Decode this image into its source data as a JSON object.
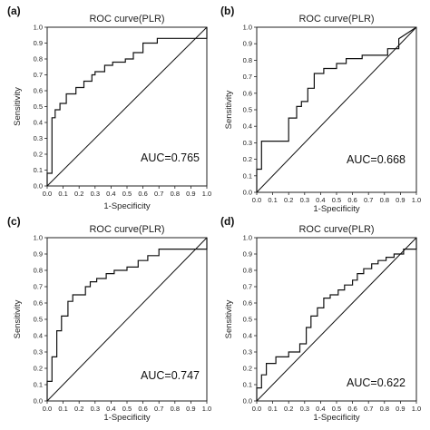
{
  "panels": [
    {
      "label": "(a)",
      "auc": "AUC=0.765",
      "chart_data": {
        "type": "line",
        "title": "ROC curve(PLR)",
        "xlabel": "1-Specificity",
        "ylabel": "Sensitivity",
        "xlim": [
          0,
          1
        ],
        "ylim": [
          0,
          1
        ],
        "x_ticks": [
          "0.0",
          "0.1",
          "0.2",
          "0.3",
          "0.4",
          "0.5",
          "0.6",
          "0.7",
          "0.8",
          "0.9",
          "1.0"
        ],
        "y_ticks": [
          "0.0",
          "0.1",
          "0.2",
          "0.3",
          "0.4",
          "0.5",
          "0.6",
          "0.7",
          "0.8",
          "0.9",
          "1.0"
        ],
        "grid": false,
        "series": [
          {
            "x": [
              0,
              0,
              0.03,
              0.03,
              0.05,
              0.05,
              0.08,
              0.08,
              0.12,
              0.12,
              0.18,
              0.18,
              0.23,
              0.23,
              0.28,
              0.28,
              0.3,
              0.3,
              0.36,
              0.36,
              0.41,
              0.41,
              0.49,
              0.49,
              0.54,
              0.54,
              0.6,
              0.6,
              0.69,
              0.69,
              1,
              1
            ],
            "y": [
              0,
              0.08,
              0.08,
              0.43,
              0.43,
              0.48,
              0.48,
              0.52,
              0.52,
              0.58,
              0.58,
              0.62,
              0.62,
              0.66,
              0.66,
              0.7,
              0.7,
              0.72,
              0.72,
              0.76,
              0.76,
              0.78,
              0.78,
              0.8,
              0.8,
              0.84,
              0.84,
              0.9,
              0.9,
              0.93,
              0.93,
              1
            ]
          },
          {
            "x": [
              0,
              1
            ],
            "y": [
              0,
              1
            ]
          }
        ]
      }
    },
    {
      "label": "(b)",
      "auc": "AUC=0.668",
      "chart_data": {
        "type": "line",
        "title": "ROC curve(PLR)",
        "xlabel": "1-Specificity",
        "ylabel": "Sensitivity",
        "xlim": [
          0,
          1
        ],
        "ylim": [
          0,
          1
        ],
        "x_ticks": [
          "0.0",
          "0.1",
          "0.2",
          "0.3",
          "0.4",
          "0.5",
          "0.6",
          "0.7",
          "0.8",
          "0.9",
          "1.0"
        ],
        "y_ticks": [
          "0.0",
          "0.1",
          "0.2",
          "0.3",
          "0.4",
          "0.5",
          "0.6",
          "0.7",
          "0.8",
          "0.9",
          "1.0"
        ],
        "grid": false,
        "series": [
          {
            "x": [
              0,
              0,
              0.03,
              0.03,
              0.2,
              0.2,
              0.25,
              0.25,
              0.28,
              0.28,
              0.32,
              0.32,
              0.36,
              0.36,
              0.42,
              0.42,
              0.5,
              0.5,
              0.56,
              0.56,
              0.66,
              0.66,
              0.82,
              0.82,
              0.89,
              0.89,
              1
            ],
            "y": [
              0,
              0.14,
              0.14,
              0.31,
              0.31,
              0.45,
              0.45,
              0.52,
              0.52,
              0.55,
              0.55,
              0.63,
              0.63,
              0.72,
              0.72,
              0.75,
              0.75,
              0.78,
              0.78,
              0.81,
              0.81,
              0.83,
              0.83,
              0.87,
              0.87,
              0.93,
              1
            ]
          },
          {
            "x": [
              0,
              1
            ],
            "y": [
              0,
              1
            ]
          }
        ]
      }
    },
    {
      "label": "(c)",
      "auc": "AUC=0.747",
      "chart_data": {
        "type": "line",
        "title": "ROC curve(PLR)",
        "xlabel": "1-Specificity",
        "ylabel": "Sensitivity",
        "xlim": [
          0,
          1
        ],
        "ylim": [
          0,
          1
        ],
        "x_ticks": [
          "0.0",
          "0.1",
          "0.2",
          "0.3",
          "0.4",
          "0.5",
          "0.6",
          "0.7",
          "0.8",
          "0.9",
          "1.0"
        ],
        "y_ticks": [
          "0.0",
          "0.1",
          "0.2",
          "0.3",
          "0.4",
          "0.5",
          "0.6",
          "0.7",
          "0.8",
          "0.9",
          "1.0"
        ],
        "grid": false,
        "series": [
          {
            "x": [
              0,
              0,
              0.03,
              0.03,
              0.06,
              0.06,
              0.09,
              0.09,
              0.13,
              0.13,
              0.16,
              0.16,
              0.24,
              0.24,
              0.27,
              0.27,
              0.31,
              0.31,
              0.37,
              0.37,
              0.42,
              0.42,
              0.5,
              0.5,
              0.57,
              0.57,
              0.63,
              0.63,
              0.7,
              0.7,
              1,
              1
            ],
            "y": [
              0,
              0.12,
              0.12,
              0.27,
              0.27,
              0.43,
              0.43,
              0.52,
              0.52,
              0.61,
              0.61,
              0.65,
              0.65,
              0.7,
              0.7,
              0.73,
              0.73,
              0.75,
              0.75,
              0.78,
              0.78,
              0.8,
              0.8,
              0.82,
              0.82,
              0.86,
              0.86,
              0.89,
              0.89,
              0.93,
              0.93,
              1
            ]
          },
          {
            "x": [
              0,
              1
            ],
            "y": [
              0,
              1
            ]
          }
        ]
      }
    },
    {
      "label": "(d)",
      "auc": "AUC=0.622",
      "chart_data": {
        "type": "line",
        "title": "ROC curve(PLR)",
        "xlabel": "1-Specificity",
        "ylabel": "Sensitivity",
        "xlim": [
          0,
          1
        ],
        "ylim": [
          0,
          1
        ],
        "x_ticks": [
          "0.0",
          "0.1",
          "0.2",
          "0.3",
          "0.4",
          "0.5",
          "0.6",
          "0.7",
          "0.8",
          "0.9",
          "1.0"
        ],
        "y_ticks": [
          "0.0",
          "0.1",
          "0.2",
          "0.3",
          "0.4",
          "0.5",
          "0.6",
          "0.7",
          "0.8",
          "0.9",
          "1.0"
        ],
        "grid": false,
        "series": [
          {
            "x": [
              0,
              0,
              0.03,
              0.03,
              0.06,
              0.06,
              0.12,
              0.12,
              0.2,
              0.2,
              0.27,
              0.27,
              0.31,
              0.31,
              0.34,
              0.34,
              0.38,
              0.38,
              0.42,
              0.42,
              0.46,
              0.46,
              0.51,
              0.51,
              0.55,
              0.55,
              0.6,
              0.6,
              0.63,
              0.63,
              0.67,
              0.67,
              0.72,
              0.72,
              0.76,
              0.76,
              0.81,
              0.81,
              0.86,
              0.86,
              0.92,
              0.92,
              1,
              1
            ],
            "y": [
              0,
              0.08,
              0.08,
              0.16,
              0.16,
              0.23,
              0.23,
              0.27,
              0.27,
              0.3,
              0.3,
              0.35,
              0.35,
              0.45,
              0.45,
              0.52,
              0.52,
              0.57,
              0.57,
              0.63,
              0.63,
              0.65,
              0.65,
              0.68,
              0.68,
              0.71,
              0.71,
              0.74,
              0.74,
              0.78,
              0.78,
              0.81,
              0.81,
              0.84,
              0.84,
              0.86,
              0.86,
              0.88,
              0.88,
              0.9,
              0.9,
              0.93,
              0.93,
              1
            ]
          },
          {
            "x": [
              0,
              1
            ],
            "y": [
              0,
              1
            ]
          }
        ]
      }
    }
  ]
}
